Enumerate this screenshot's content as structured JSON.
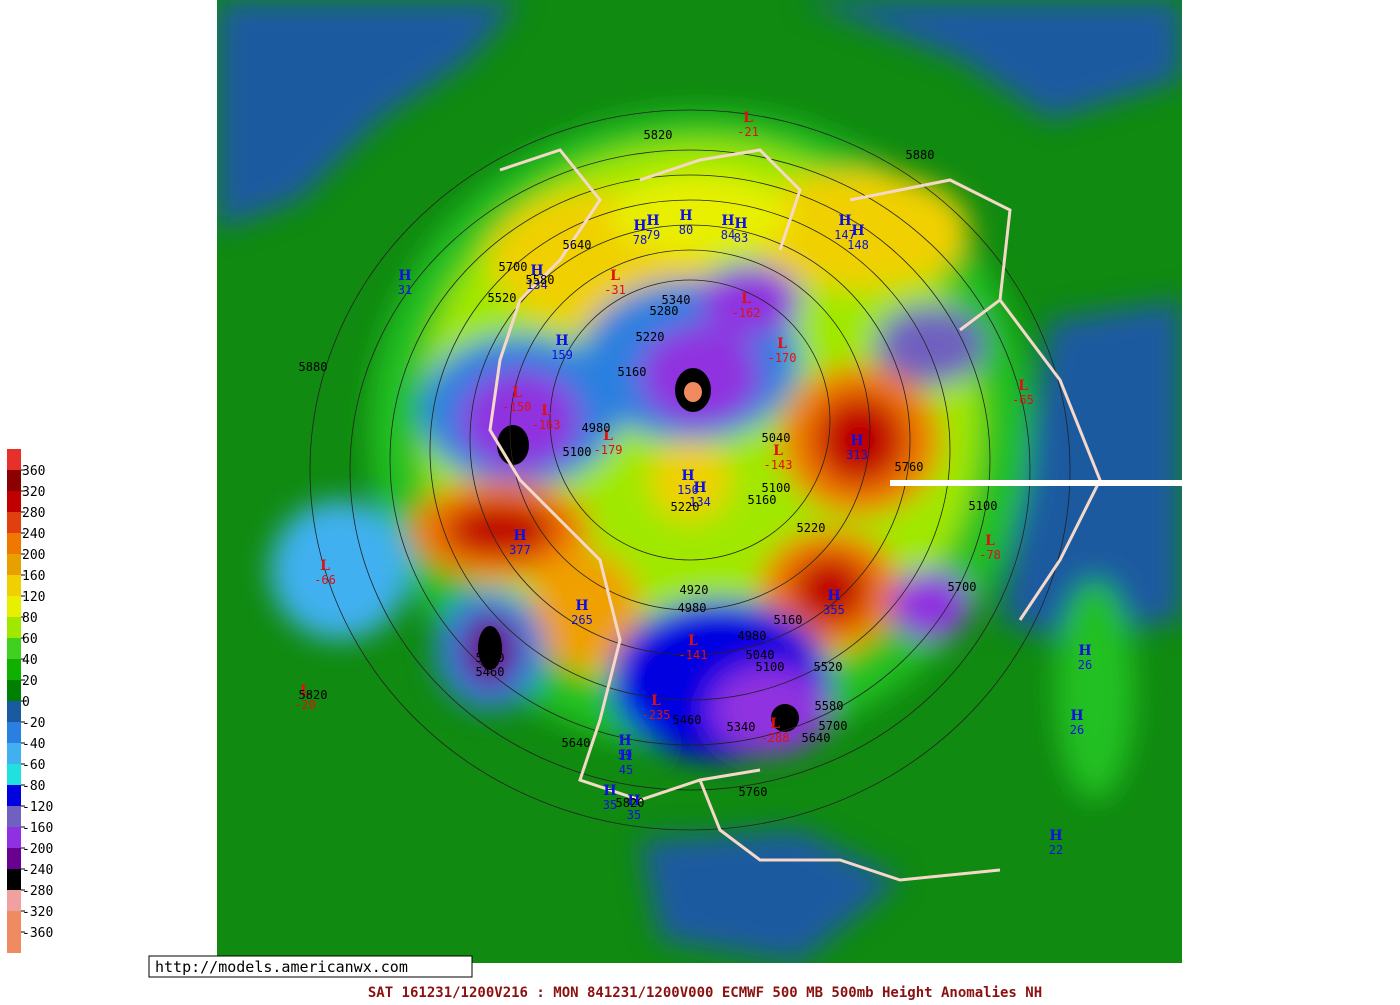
{
  "map": {
    "url": "http://models.americanwx.com",
    "caption": "SAT 161231/1200V216 : MON 841231/1200V000  ECMWF  500 MB 500mb Height Anomalies NH",
    "colorbar": {
      "ticks": [
        360,
        320,
        280,
        240,
        200,
        160,
        120,
        80,
        60,
        40,
        20,
        0,
        -20,
        -40,
        -60,
        -80,
        -120,
        -160,
        -200,
        -240,
        -280,
        -320,
        -360
      ],
      "colors": [
        "#e8302a",
        "#8b0000",
        "#c00000",
        "#e04010",
        "#f07800",
        "#e8a000",
        "#f0d000",
        "#e8f000",
        "#a0e800",
        "#40d020",
        "#10b000",
        "#008000",
        "#1a5aa0",
        "#2a80e0",
        "#40b0f0",
        "#20e0e0",
        "#0000e0",
        "#7060c0",
        "#9030e0",
        "#6a0090",
        "#000000",
        "#f0a0a0",
        "#f08a60",
        "#f08a60"
      ]
    },
    "pressure_centers": [
      {
        "kind": "H",
        "value": 31
      },
      {
        "kind": "L",
        "value": -21
      },
      {
        "kind": "H",
        "value": 78
      },
      {
        "kind": "H",
        "value": 79
      },
      {
        "kind": "H",
        "value": 80
      },
      {
        "kind": "H",
        "value": 84
      },
      {
        "kind": "H",
        "value": 83
      },
      {
        "kind": "H",
        "value": 147
      },
      {
        "kind": "H",
        "value": 148
      },
      {
        "kind": "H",
        "value": 134
      },
      {
        "kind": "L",
        "value": -31
      },
      {
        "kind": "H",
        "value": 159
      },
      {
        "kind": "L",
        "value": -162
      },
      {
        "kind": "L",
        "value": -170
      },
      {
        "kind": "L",
        "value": -150
      },
      {
        "kind": "L",
        "value": -163
      },
      {
        "kind": "L",
        "value": -179
      },
      {
        "kind": "H",
        "value": 313
      },
      {
        "kind": "L",
        "value": -65
      },
      {
        "kind": "H",
        "value": 150
      },
      {
        "kind": "H",
        "value": 134
      },
      {
        "kind": "L",
        "value": -143
      },
      {
        "kind": "H",
        "value": 377
      },
      {
        "kind": "L",
        "value": -66
      },
      {
        "kind": "H",
        "value": 265
      },
      {
        "kind": "H",
        "value": 355
      },
      {
        "kind": "L",
        "value": -78
      },
      {
        "kind": "H",
        "value": 26
      },
      {
        "kind": "H",
        "value": 26
      },
      {
        "kind": "L",
        "value": -20
      },
      {
        "kind": "H",
        "value": 59
      },
      {
        "kind": "H",
        "value": 45
      },
      {
        "kind": "H",
        "value": 35
      },
      {
        "kind": "H",
        "value": 35
      },
      {
        "kind": "H",
        "value": 22
      },
      {
        "kind": "L",
        "value": -141
      },
      {
        "kind": "L",
        "value": -288
      },
      {
        "kind": "L",
        "value": -235
      }
    ],
    "contour_labels": [
      "5820",
      "5880",
      "5640",
      "5700",
      "5580",
      "5520",
      "5880",
      "5340",
      "5280",
      "5220",
      "5160",
      "4980",
      "5100",
      "5040",
      "5100",
      "5160",
      "5220",
      "5220",
      "5760",
      "5100",
      "5700",
      "4920",
      "4980",
      "4980",
      "5160",
      "5040",
      "5100",
      "5520",
      "5580",
      "5700",
      "5640",
      "5460",
      "5340",
      "5760",
      "5820",
      "5640",
      "5820",
      "5400",
      "5460"
    ]
  }
}
